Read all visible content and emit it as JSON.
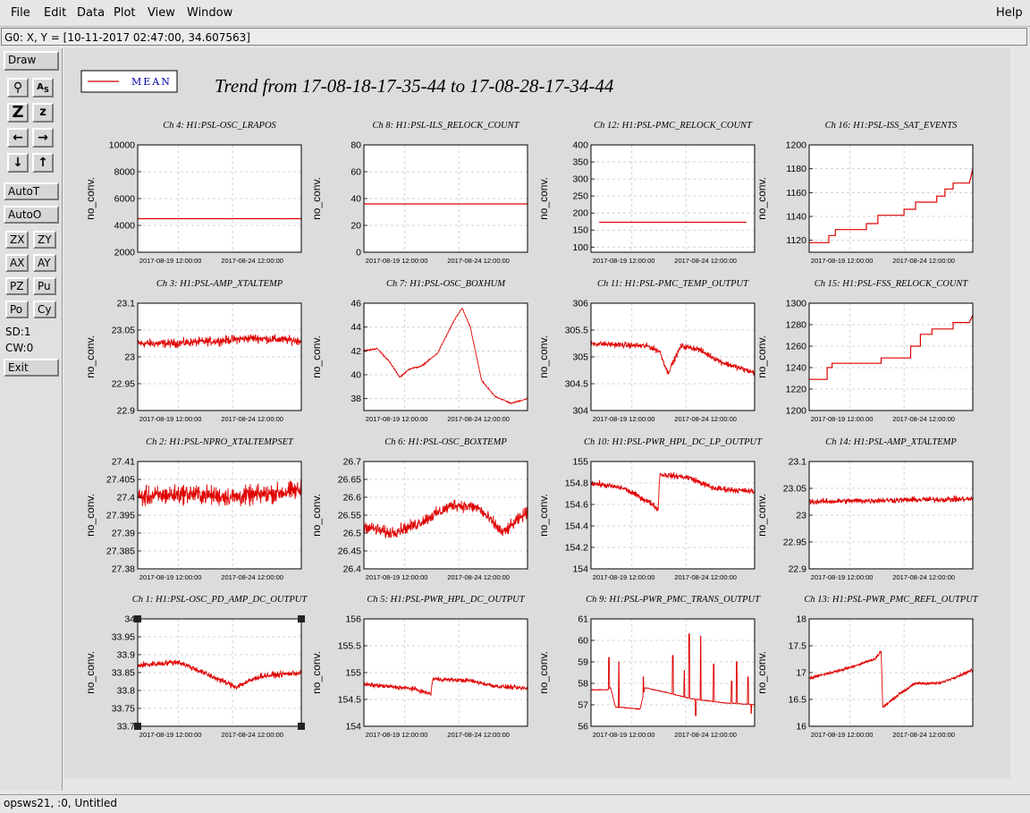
{
  "menubar": {
    "items": [
      {
        "label": "File",
        "key": "F"
      },
      {
        "label": "Edit",
        "key": "E"
      },
      {
        "label": "Data",
        "key": "D"
      },
      {
        "label": "Plot",
        "key": "P"
      },
      {
        "label": "View",
        "key": "V"
      },
      {
        "label": "Window",
        "key": "W"
      }
    ],
    "help": "Help"
  },
  "status_line": "G0: X, Y = [10-11-2017 02:47:00, 34.607563]",
  "toolbar": {
    "draw": "Draw",
    "auto_t": "AutoT",
    "auto_o": "AutoO",
    "zx": "ZX",
    "zy": "ZY",
    "ax": "AX",
    "ay": "AY",
    "pz": "PZ",
    "pu": "Pu",
    "po": "Po",
    "cy": "Cy",
    "sd": "SD:1",
    "cw": "CW:0",
    "exit": "Exit",
    "icons": [
      "magnify-icon",
      "text-label-icon",
      "zoom-z-large-icon",
      "zoom-z-small-icon",
      "arrow-left-icon",
      "arrow-right-icon",
      "arrow-down-icon",
      "arrow-up-icon"
    ]
  },
  "legend": {
    "label": "MEAN",
    "color": "#cc0000"
  },
  "page_title": "Trend from 17-08-18-17-35-44 to 17-08-28-17-34-44",
  "footer": "opsws21, :0, Untitled",
  "chart_data": [
    {
      "type": "line",
      "title": "Ch 4: H1:PSL-OSC_LRAPOS",
      "ylabel": "no_conv.",
      "xticks": [
        "2017-08-19 12:00:00",
        "2017-08-24 12:00:00"
      ],
      "yticks": [
        "2000",
        "4000",
        "6000",
        "8000",
        "10000"
      ],
      "ylim": [
        2000,
        10000
      ],
      "shape": "flat",
      "level": 4500,
      "noise": 0
    },
    {
      "type": "line",
      "title": "Ch 8: H1:PSL-ILS_RELOCK_COUNT",
      "ylabel": "no_conv.",
      "xticks": [
        "2017-08-19 12:00:00",
        "2017-08-24 12:00:00"
      ],
      "yticks": [
        "0",
        "20",
        "40",
        "60",
        "80"
      ],
      "ylim": [
        0,
        80
      ],
      "shape": "flat",
      "level": 36,
      "noise": 0
    },
    {
      "type": "line",
      "title": "Ch 12: H1:PSL-PMC_RELOCK_COUNT",
      "ylabel": "no_conv.",
      "xticks": [
        "2017-08-19 12:00:00",
        "2017-08-24 12:00:00"
      ],
      "yticks": [
        "100",
        "150",
        "200",
        "250",
        "300",
        "350",
        "400"
      ],
      "ylim": [
        85,
        400
      ],
      "shape": "flat",
      "level": 173,
      "noise": 0,
      "xstart": 0.05,
      "xend": 0.95
    },
    {
      "type": "line",
      "title": "Ch 16: H1:PSL-ISS_SAT_EVENTS",
      "ylabel": "no_conv.",
      "xticks": [
        "2017-08-19 12:00:00",
        "2017-08-24 12:00:00"
      ],
      "yticks": [
        "1120",
        "1140",
        "1160",
        "1180",
        "1200"
      ],
      "ylim": [
        1110,
        1200
      ],
      "shape": "steps",
      "points": [
        [
          0,
          1118
        ],
        [
          0.12,
          1118
        ],
        [
          0.12,
          1124
        ],
        [
          0.16,
          1124
        ],
        [
          0.16,
          1129
        ],
        [
          0.35,
          1129
        ],
        [
          0.35,
          1134
        ],
        [
          0.42,
          1134
        ],
        [
          0.42,
          1141
        ],
        [
          0.58,
          1141
        ],
        [
          0.58,
          1146
        ],
        [
          0.65,
          1146
        ],
        [
          0.65,
          1152
        ],
        [
          0.78,
          1152
        ],
        [
          0.78,
          1157
        ],
        [
          0.83,
          1157
        ],
        [
          0.83,
          1163
        ],
        [
          0.88,
          1163
        ],
        [
          0.88,
          1168
        ],
        [
          0.98,
          1168
        ],
        [
          1.0,
          1180
        ]
      ]
    },
    {
      "type": "line",
      "title": "Ch 3: H1:PSL-AMP_XTALTEMP",
      "ylabel": "no_conv.",
      "xticks": [
        "2017-08-19 12:00:00",
        "2017-08-24 12:00:00"
      ],
      "yticks": [
        "22.9",
        "22.95",
        "23",
        "23.05",
        "23.1"
      ],
      "ylim": [
        22.9,
        23.1
      ],
      "shape": "noisy",
      "points": [
        [
          0,
          23.025
        ],
        [
          0.2,
          23.025
        ],
        [
          0.5,
          23.03
        ],
        [
          0.7,
          23.035
        ],
        [
          1.0,
          23.03
        ]
      ],
      "noise": 0.012
    },
    {
      "type": "line",
      "title": "Ch 7: H1:PSL-OSC_BOXHUM",
      "ylabel": "no_conv.",
      "xticks": [
        "2017-08-19 12:00:00",
        "2017-08-24 12:00:00"
      ],
      "yticks": [
        "38",
        "40",
        "42",
        "44",
        "46"
      ],
      "ylim": [
        37,
        46
      ],
      "shape": "noisy",
      "points": [
        [
          0,
          42
        ],
        [
          0.08,
          42.2
        ],
        [
          0.15,
          41.2
        ],
        [
          0.22,
          39.8
        ],
        [
          0.28,
          40.5
        ],
        [
          0.35,
          40.7
        ],
        [
          0.45,
          41.8
        ],
        [
          0.55,
          44.5
        ],
        [
          0.6,
          45.6
        ],
        [
          0.65,
          44
        ],
        [
          0.72,
          39.5
        ],
        [
          0.8,
          38.2
        ],
        [
          0.9,
          37.6
        ],
        [
          1.0,
          38
        ]
      ],
      "noise": 0.08
    },
    {
      "type": "line",
      "title": "Ch 11: H1:PSL-PMC_TEMP_OUTPUT",
      "ylabel": "no_conv.",
      "xticks": [
        "2017-08-19 12:00:00",
        "2017-08-24 12:00:00"
      ],
      "yticks": [
        "304",
        "304.5",
        "305",
        "305.5",
        "306"
      ],
      "ylim": [
        304,
        306
      ],
      "shape": "noisy",
      "points": [
        [
          0,
          305.25
        ],
        [
          0.35,
          305.2
        ],
        [
          0.42,
          305.1
        ],
        [
          0.47,
          304.7
        ],
        [
          0.55,
          305.2
        ],
        [
          0.65,
          305.15
        ],
        [
          0.8,
          304.9
        ],
        [
          0.9,
          304.8
        ],
        [
          1.0,
          304.7
        ]
      ],
      "noise": 0.08
    },
    {
      "type": "line",
      "title": "Ch 15: H1:PSL-FSS_RELOCK_COUNT",
      "ylabel": "no_conv.",
      "xticks": [
        "2017-08-19 12:00:00",
        "2017-08-24 12:00:00"
      ],
      "yticks": [
        "1200",
        "1220",
        "1240",
        "1260",
        "1280",
        "1300"
      ],
      "ylim": [
        1200,
        1300
      ],
      "shape": "steps",
      "points": [
        [
          0,
          1229
        ],
        [
          0.11,
          1229
        ],
        [
          0.11,
          1240
        ],
        [
          0.14,
          1240
        ],
        [
          0.14,
          1244
        ],
        [
          0.44,
          1244
        ],
        [
          0.44,
          1249
        ],
        [
          0.62,
          1249
        ],
        [
          0.62,
          1260
        ],
        [
          0.68,
          1260
        ],
        [
          0.68,
          1271
        ],
        [
          0.75,
          1271
        ],
        [
          0.75,
          1276
        ],
        [
          0.88,
          1276
        ],
        [
          0.88,
          1282
        ],
        [
          0.98,
          1282
        ],
        [
          1.0,
          1289
        ]
      ]
    },
    {
      "type": "line",
      "title": "Ch 2: H1:PSL-NPRO_XTALTEMPSET",
      "ylabel": "no_conv.",
      "xticks": [
        "2017-08-19 12:00:00",
        "2017-08-24 12:00:00"
      ],
      "yticks": [
        "27.38",
        "27.385",
        "27.39",
        "27.395",
        "27.4",
        "27.405",
        "27.41"
      ],
      "ylim": [
        27.38,
        27.41
      ],
      "shape": "noisy",
      "points": [
        [
          0,
          27.4
        ],
        [
          0.3,
          27.401
        ],
        [
          0.6,
          27.4
        ],
        [
          1.0,
          27.402
        ]
      ],
      "noise": 0.004
    },
    {
      "type": "line",
      "title": "Ch 6: H1:PSL-OSC_BOXTEMP",
      "ylabel": "no_conv.",
      "xticks": [
        "2017-08-19 12:00:00",
        "2017-08-24 12:00:00"
      ],
      "yticks": [
        "26.4",
        "26.45",
        "26.5",
        "26.55",
        "26.6",
        "26.65",
        "26.7"
      ],
      "ylim": [
        26.4,
        26.7
      ],
      "shape": "noisy",
      "points": [
        [
          0,
          26.52
        ],
        [
          0.15,
          26.5
        ],
        [
          0.3,
          26.52
        ],
        [
          0.55,
          26.58
        ],
        [
          0.7,
          26.57
        ],
        [
          0.85,
          26.5
        ],
        [
          1.0,
          26.56
        ]
      ],
      "noise": 0.025
    },
    {
      "type": "line",
      "title": "Ch 10: H1:PSL-PWR_HPL_DC_LP_OUTPUT",
      "ylabel": "no_conv.",
      "xticks": [
        "2017-08-19 12:00:00",
        "2017-08-24 12:00:00"
      ],
      "yticks": [
        "154",
        "154.2",
        "154.4",
        "154.6",
        "154.8",
        "155"
      ],
      "ylim": [
        154,
        155
      ],
      "shape": "noisy",
      "points": [
        [
          0,
          154.8
        ],
        [
          0.2,
          154.75
        ],
        [
          0.38,
          154.6
        ],
        [
          0.41,
          154.55
        ],
        [
          0.42,
          154.88
        ],
        [
          0.6,
          154.85
        ],
        [
          0.75,
          154.75
        ],
        [
          1.0,
          154.72
        ]
      ],
      "noise": 0.04
    },
    {
      "type": "line",
      "title": "Ch 14: H1:PSL-AMP_XTALTEMP",
      "ylabel": "no_conv.",
      "xticks": [
        "2017-08-19 12:00:00",
        "2017-08-24 12:00:00"
      ],
      "yticks": [
        "22.9",
        "22.95",
        "23",
        "23.05",
        "23.1"
      ],
      "ylim": [
        22.9,
        23.1
      ],
      "shape": "noisy",
      "points": [
        [
          0,
          23.025
        ],
        [
          0.5,
          23.028
        ],
        [
          1.0,
          23.03
        ]
      ],
      "noise": 0.008
    },
    {
      "type": "line",
      "title": "Ch 1: H1:PSL-OSC_PD_AMP_DC_OUTPUT",
      "ylabel": "no_conv.",
      "xticks": [
        "2017-08-19 12:00:00",
        "2017-08-24 12:00:00"
      ],
      "yticks": [
        "33.7",
        "33.75",
        "33.8",
        "33.85",
        "33.9",
        "33.95",
        "34"
      ],
      "ylim": [
        33.7,
        34
      ],
      "shape": "noisy",
      "points": [
        [
          0,
          33.87
        ],
        [
          0.25,
          33.88
        ],
        [
          0.4,
          33.85
        ],
        [
          0.6,
          33.81
        ],
        [
          0.75,
          33.84
        ],
        [
          1.0,
          33.85
        ]
      ],
      "noise": 0.012,
      "selected": true
    },
    {
      "type": "line",
      "title": "Ch 5: H1:PSL-PWR_HPL_DC_OUTPUT",
      "ylabel": "no_conv.",
      "xticks": [
        "2017-08-19 12:00:00",
        "2017-08-24 12:00:00"
      ],
      "yticks": [
        "154",
        "154.5",
        "155",
        "155.5",
        "156"
      ],
      "ylim": [
        154,
        156
      ],
      "shape": "noisy",
      "points": [
        [
          0,
          154.78
        ],
        [
          0.3,
          154.7
        ],
        [
          0.41,
          154.6
        ],
        [
          0.42,
          154.88
        ],
        [
          0.65,
          154.85
        ],
        [
          0.8,
          154.75
        ],
        [
          1.0,
          154.7
        ]
      ],
      "noise": 0.06
    },
    {
      "type": "line",
      "title": "Ch 9: H1:PSL-PWR_PMC_TRANS_OUTPUT",
      "ylabel": "no_conv.",
      "xticks": [
        "2017-08-19 12:00:00",
        "2017-08-24 12:00:00"
      ],
      "yticks": [
        "56",
        "57",
        "58",
        "59",
        "60",
        "61"
      ],
      "ylim": [
        56,
        61
      ],
      "shape": "spiky",
      "points": [
        [
          0,
          57.7
        ],
        [
          0.1,
          57.7
        ],
        [
          0.12,
          57.8
        ],
        [
          0.15,
          56.9
        ],
        [
          0.3,
          56.8
        ],
        [
          0.33,
          57.8
        ],
        [
          0.5,
          57.5
        ],
        [
          0.6,
          57.3
        ],
        [
          0.8,
          57.1
        ],
        [
          1.0,
          57.0
        ]
      ],
      "spikes": [
        [
          0.11,
          59.2
        ],
        [
          0.17,
          59.0
        ],
        [
          0.32,
          58.3
        ],
        [
          0.5,
          59.3
        ],
        [
          0.57,
          58.6
        ],
        [
          0.6,
          60.3
        ],
        [
          0.64,
          56.5
        ],
        [
          0.67,
          60.2
        ],
        [
          0.75,
          58.9
        ],
        [
          0.86,
          58.1
        ],
        [
          0.89,
          59.0
        ],
        [
          0.96,
          58.3
        ],
        [
          0.98,
          56.6
        ]
      ],
      "noise": 0.03
    },
    {
      "type": "line",
      "title": "Ch 13: H1:PSL-PWR_PMC_REFL_OUTPUT",
      "ylabel": "no_conv.",
      "xticks": [
        "2017-08-19 12:00:00",
        "2017-08-24 12:00:00"
      ],
      "yticks": [
        "16",
        "16.5",
        "17",
        "17.5",
        "18"
      ],
      "ylim": [
        16,
        18
      ],
      "shape": "noisy",
      "points": [
        [
          0,
          16.9
        ],
        [
          0.2,
          17.05
        ],
        [
          0.4,
          17.25
        ],
        [
          0.44,
          17.4
        ],
        [
          0.45,
          16.35
        ],
        [
          0.55,
          16.6
        ],
        [
          0.65,
          16.8
        ],
        [
          0.8,
          16.8
        ],
        [
          1.0,
          17.05
        ]
      ],
      "noise": 0.04
    }
  ]
}
